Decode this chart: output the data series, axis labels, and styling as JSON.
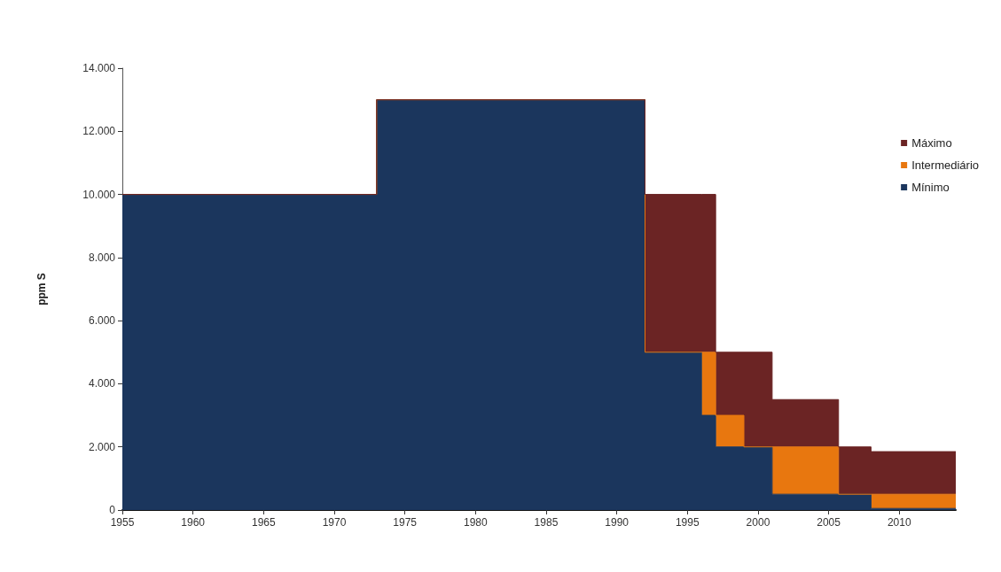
{
  "chart_data": {
    "type": "area",
    "stacked": true,
    "ylabel": "ppm S",
    "x": [
      1955,
      1973,
      1973,
      1992,
      1992,
      1996,
      1996,
      1997,
      1997,
      1999,
      1999,
      2001,
      2001,
      2005.7,
      2005.7,
      2008,
      2008,
      2014
    ],
    "series": [
      {
        "name": "Mínimo",
        "color": "#1b365d",
        "values": [
          10000,
          10000,
          13000,
          13000,
          5000,
          5000,
          3000,
          3000,
          2000,
          2000,
          2000,
          2000,
          500,
          500,
          500,
          500,
          50,
          50
        ]
      },
      {
        "name": "Intermediário",
        "color": "#e8770f",
        "values": [
          0,
          0,
          0,
          0,
          0,
          0,
          2000,
          2000,
          1000,
          1000,
          0,
          0,
          1500,
          1500,
          0,
          0,
          450,
          450
        ]
      },
      {
        "name": "Máximo",
        "color": "#6b2424",
        "values": [
          0,
          0,
          0,
          0,
          5000,
          5000,
          5000,
          5000,
          2000,
          2000,
          3000,
          3000,
          1500,
          1500,
          1500,
          1500,
          1350,
          1350
        ]
      }
    ],
    "xlim": [
      1955,
      2014
    ],
    "xticks": [
      1955,
      1960,
      1965,
      1970,
      1975,
      1980,
      1985,
      1990,
      1995,
      2000,
      2005,
      2010
    ],
    "ylim": [
      0,
      14000
    ],
    "yticks": [
      0,
      {
        "value": 2000,
        "label": "2.000"
      },
      {
        "value": 4000,
        "label": "4.000"
      },
      {
        "value": 6000,
        "label": "6.000"
      },
      {
        "value": 8000,
        "label": "8.000"
      },
      {
        "value": 10000,
        "label": "10.000"
      },
      {
        "value": 12000,
        "label": "12.000"
      },
      {
        "value": 14000,
        "label": "14.000"
      }
    ],
    "grid": false,
    "legend": "right",
    "marker": "none"
  }
}
